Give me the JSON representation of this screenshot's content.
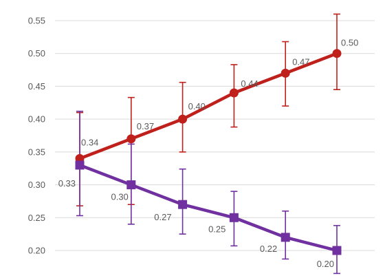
{
  "chart_data": {
    "type": "line",
    "title": "",
    "xlabel": "",
    "ylabel": "",
    "ylim": [
      0.175,
      0.575
    ],
    "yticks": [
      0.2,
      0.25,
      0.3,
      0.35,
      0.4,
      0.45,
      0.5,
      0.55
    ],
    "ytick_labels": [
      "0.20",
      "0.25",
      "0.30",
      "0.35",
      "0.40",
      "0.45",
      "0.50",
      "0.55"
    ],
    "grid": true,
    "legend": "none",
    "x": [
      1,
      2,
      3,
      4,
      5,
      6
    ],
    "series": [
      {
        "color": "#c0201c",
        "marker": "circle",
        "values": [
          0.34,
          0.37,
          0.4,
          0.44,
          0.47,
          0.5
        ],
        "labels": [
          "0.34",
          "0.37",
          "0.40",
          "0.44",
          "0.47",
          "0.50"
        ],
        "error_low": [
          0.268,
          0.27,
          0.35,
          0.388,
          0.42,
          0.445
        ],
        "error_high": [
          0.41,
          0.433,
          0.456,
          0.483,
          0.518,
          0.56
        ]
      },
      {
        "color": "#7030a0",
        "marker": "square",
        "values": [
          0.33,
          0.3,
          0.27,
          0.25,
          0.22,
          0.2
        ],
        "labels": [
          "0.33",
          "0.30",
          "0.27",
          "0.25",
          "0.22",
          "0.20"
        ],
        "error_low": [
          0.253,
          0.24,
          0.225,
          0.207,
          0.187,
          0.165
        ],
        "error_high": [
          0.412,
          0.362,
          0.324,
          0.29,
          0.26,
          0.238
        ]
      }
    ]
  }
}
